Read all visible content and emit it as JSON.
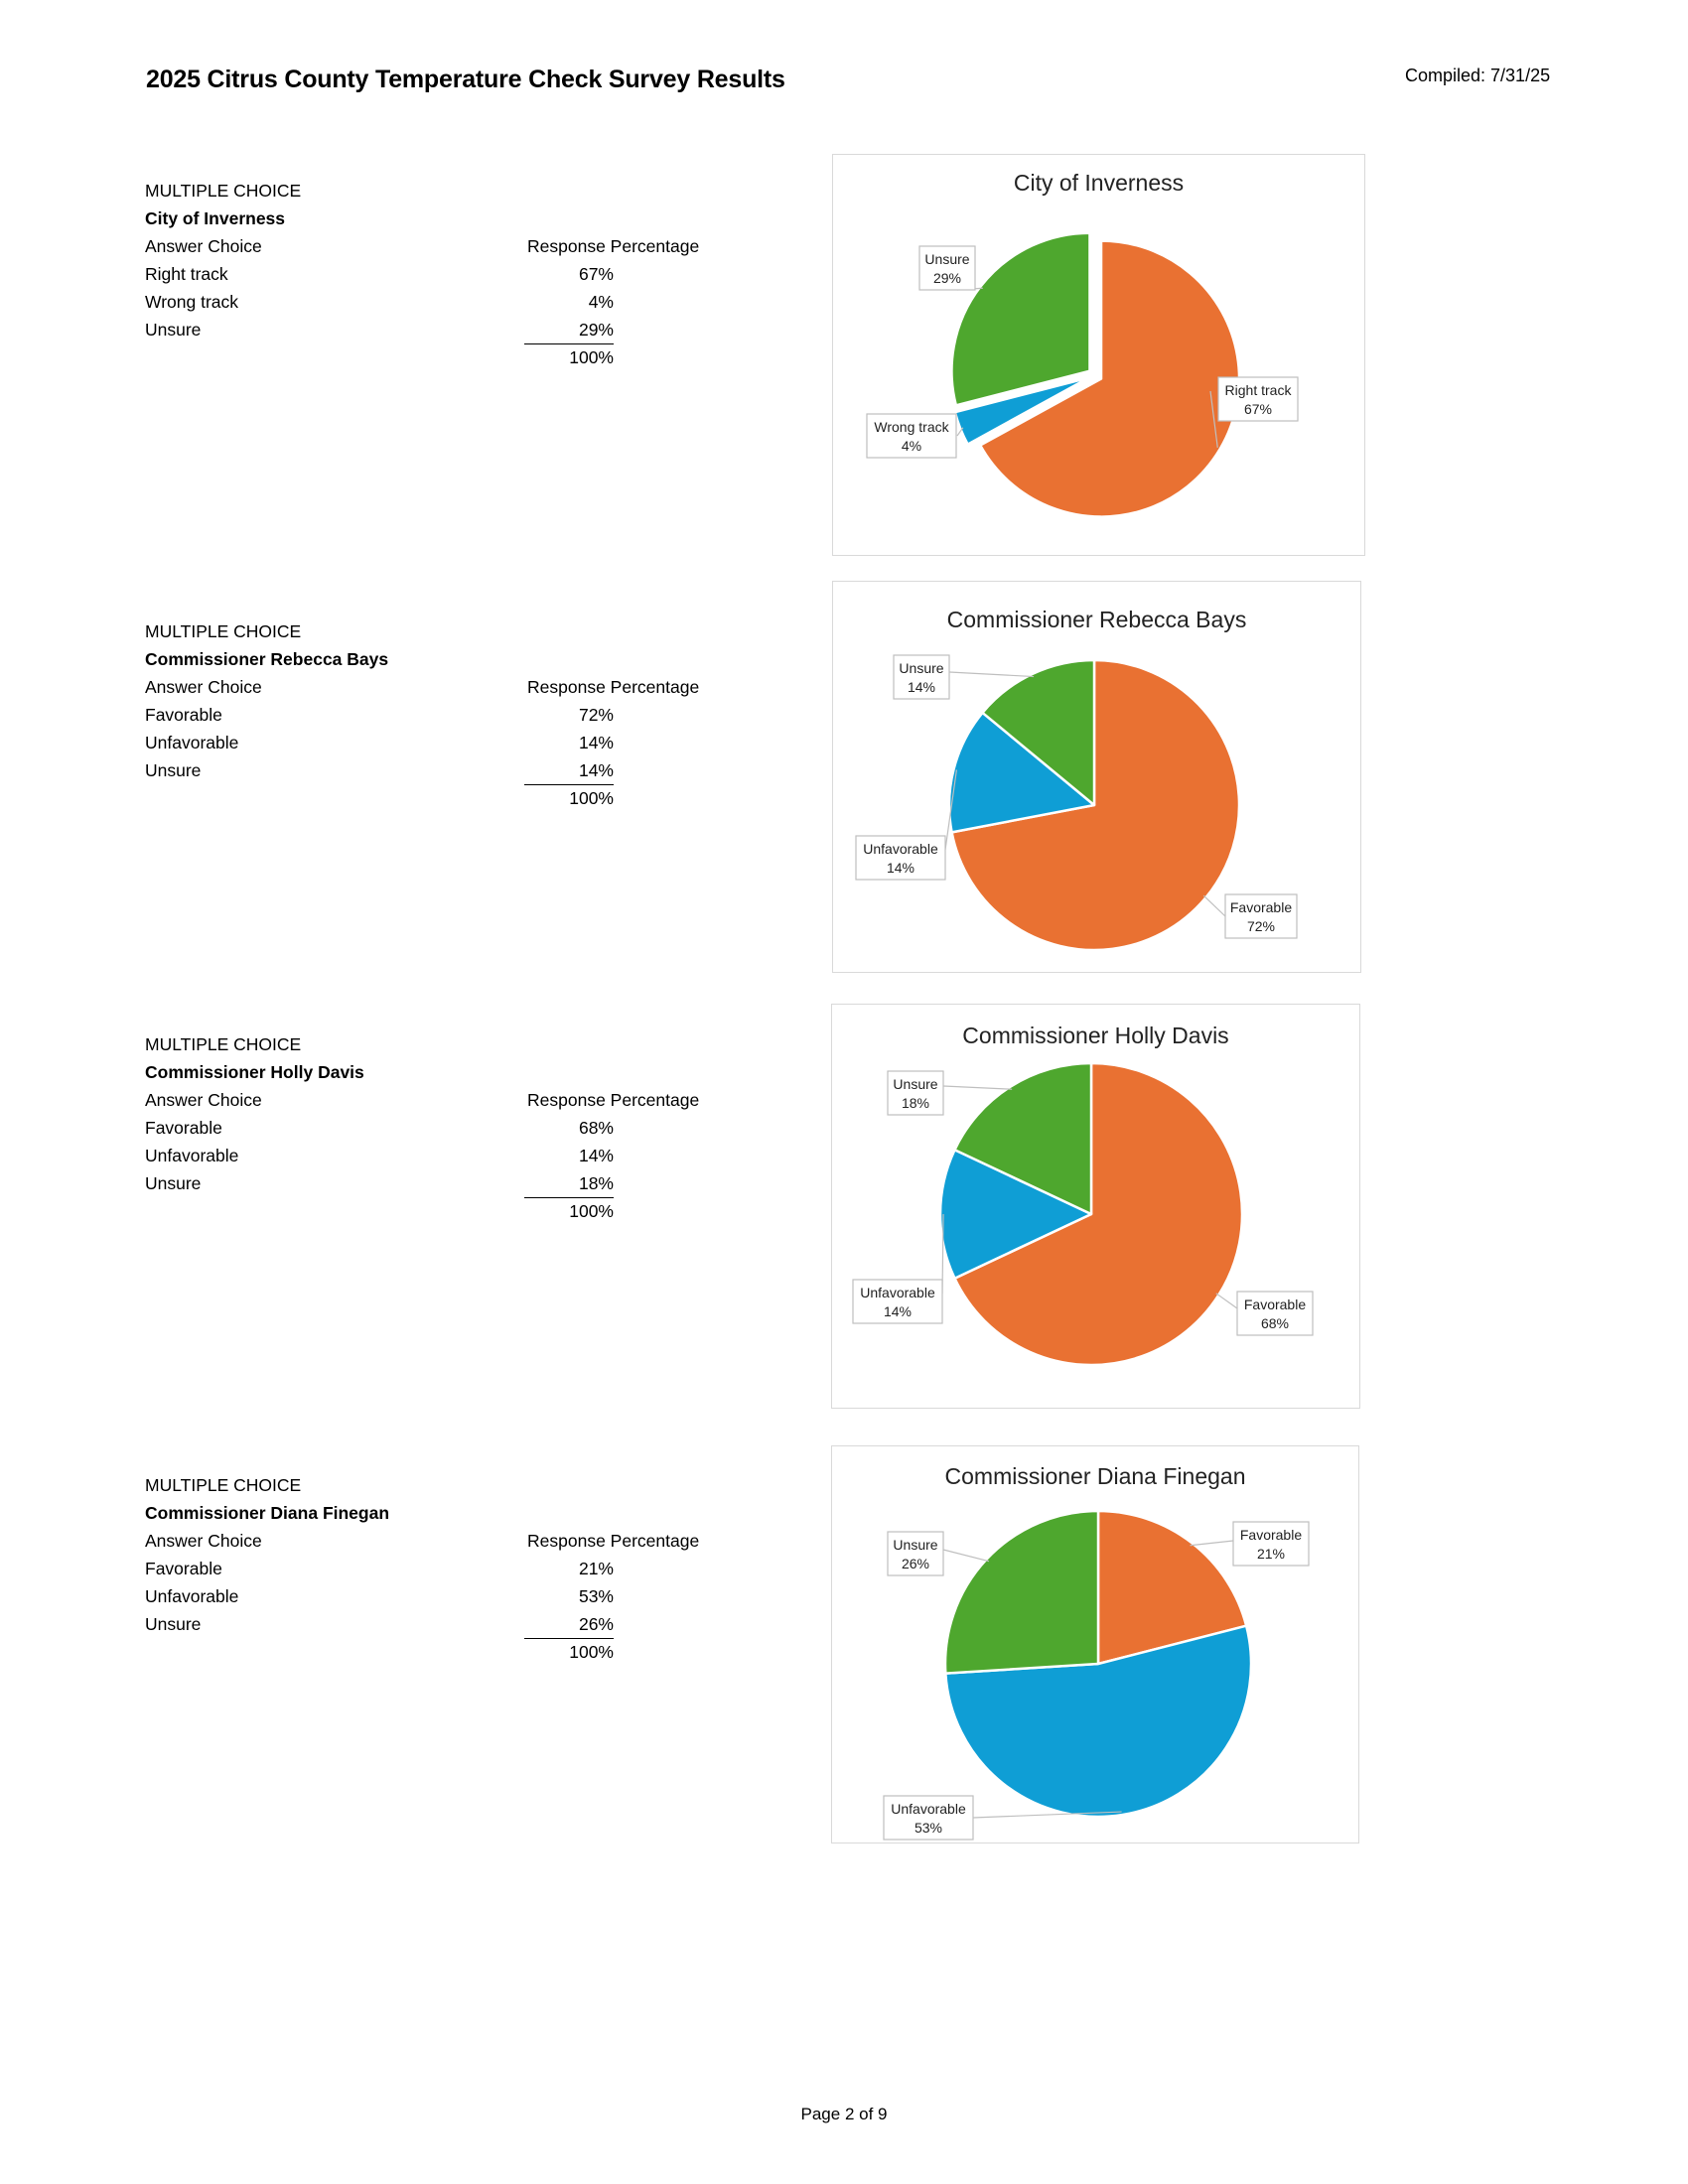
{
  "header": {
    "title": "2025 Citrus County Temperature Check Survey Results",
    "compiled": "Compiled: 7/31/25"
  },
  "footer": {
    "page": "Page 2 of 9"
  },
  "sections": [
    {
      "type_label": "MULTIPLE CHOICE",
      "question": "City of Inverness",
      "answer_header": "Answer Choice",
      "response_header": "Response Percentage",
      "rows": [
        {
          "answer": "Right track",
          "pct": "67%"
        },
        {
          "answer": "Wrong track",
          "pct": "4%"
        },
        {
          "answer": "Unsure",
          "pct": "29%"
        }
      ],
      "total": "100%"
    },
    {
      "type_label": "MULTIPLE CHOICE",
      "question": "Commissioner Rebecca Bays",
      "answer_header": "Answer Choice",
      "response_header": "Response Percentage",
      "rows": [
        {
          "answer": "Favorable",
          "pct": "72%"
        },
        {
          "answer": "Unfavorable",
          "pct": "14%"
        },
        {
          "answer": "Unsure",
          "pct": "14%"
        }
      ],
      "total": "100%"
    },
    {
      "type_label": "MULTIPLE CHOICE",
      "question": "Commissioner Holly Davis",
      "answer_header": "Answer Choice",
      "response_header": "Response Percentage",
      "rows": [
        {
          "answer": "Favorable",
          "pct": "68%"
        },
        {
          "answer": "Unfavorable",
          "pct": "14%"
        },
        {
          "answer": "Unsure",
          "pct": "18%"
        }
      ],
      "total": "100%"
    },
    {
      "type_label": "MULTIPLE CHOICE",
      "question": "Commissioner Diana Finegan",
      "answer_header": "Answer Choice",
      "response_header": "Response Percentage",
      "rows": [
        {
          "answer": "Favorable",
          "pct": "21%"
        },
        {
          "answer": "Unfavorable",
          "pct": "53%"
        },
        {
          "answer": "Unsure",
          "pct": "26%"
        }
      ],
      "total": "100%"
    }
  ],
  "chart_data": [
    {
      "type": "pie",
      "title": "City of Inverness",
      "categories": [
        "Right track",
        "Wrong track",
        "Unsure"
      ],
      "values": [
        67,
        4,
        29
      ],
      "value_labels": [
        "67%",
        "4%",
        "29%"
      ],
      "colors": [
        "#e97132",
        "#0f9ed5",
        "#4ea72e"
      ],
      "exploded": true,
      "legend": "none"
    },
    {
      "type": "pie",
      "title": "Commissioner Rebecca Bays",
      "categories": [
        "Favorable",
        "Unfavorable",
        "Unsure"
      ],
      "values": [
        72,
        14,
        14
      ],
      "value_labels": [
        "72%",
        "14%",
        "14%"
      ],
      "colors": [
        "#e97132",
        "#0f9ed5",
        "#4ea72e"
      ],
      "exploded": false,
      "legend": "none"
    },
    {
      "type": "pie",
      "title": "Commissioner Holly Davis",
      "categories": [
        "Favorable",
        "Unfavorable",
        "Unsure"
      ],
      "values": [
        68,
        14,
        18
      ],
      "value_labels": [
        "68%",
        "14%",
        "18%"
      ],
      "colors": [
        "#e97132",
        "#0f9ed5",
        "#4ea72e"
      ],
      "exploded": false,
      "legend": "none"
    },
    {
      "type": "pie",
      "title": "Commissioner Diana Finegan",
      "categories": [
        "Favorable",
        "Unfavorable",
        "Unsure"
      ],
      "values": [
        21,
        53,
        26
      ],
      "value_labels": [
        "21%",
        "53%",
        "26%"
      ],
      "colors": [
        "#e97132",
        "#0f9ed5",
        "#4ea72e"
      ],
      "exploded": false,
      "legend": "none"
    }
  ]
}
